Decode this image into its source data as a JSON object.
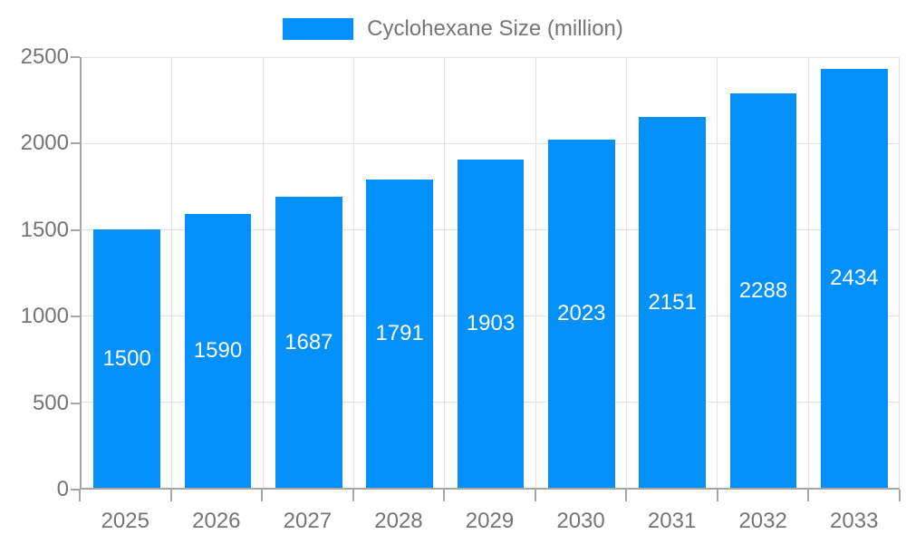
{
  "legend": {
    "label": "Cyclohexane Size (million)"
  },
  "colors": {
    "bar": "#0290fa",
    "bar_label": "#ffffff",
    "axis_text": "#757575",
    "axis_line": "#a6a6a6",
    "gridline": "#e2e2e2",
    "background": "#ffffff"
  },
  "chart_data": {
    "type": "bar",
    "title": "Cyclohexane Size (million)",
    "categories": [
      "2025",
      "2026",
      "2027",
      "2028",
      "2029",
      "2030",
      "2031",
      "2032",
      "2033"
    ],
    "values": [
      1500,
      1590,
      1687,
      1791,
      1903,
      2023,
      2151,
      2288,
      2434
    ],
    "series_name": "Cyclohexane Size (million)",
    "xlabel": "",
    "ylabel": "",
    "ylim": [
      0,
      2500
    ],
    "yticks": [
      0,
      500,
      1000,
      1500,
      2000,
      2500
    ],
    "grid": true,
    "legend_position": "top",
    "bar_labels_inside": true
  }
}
